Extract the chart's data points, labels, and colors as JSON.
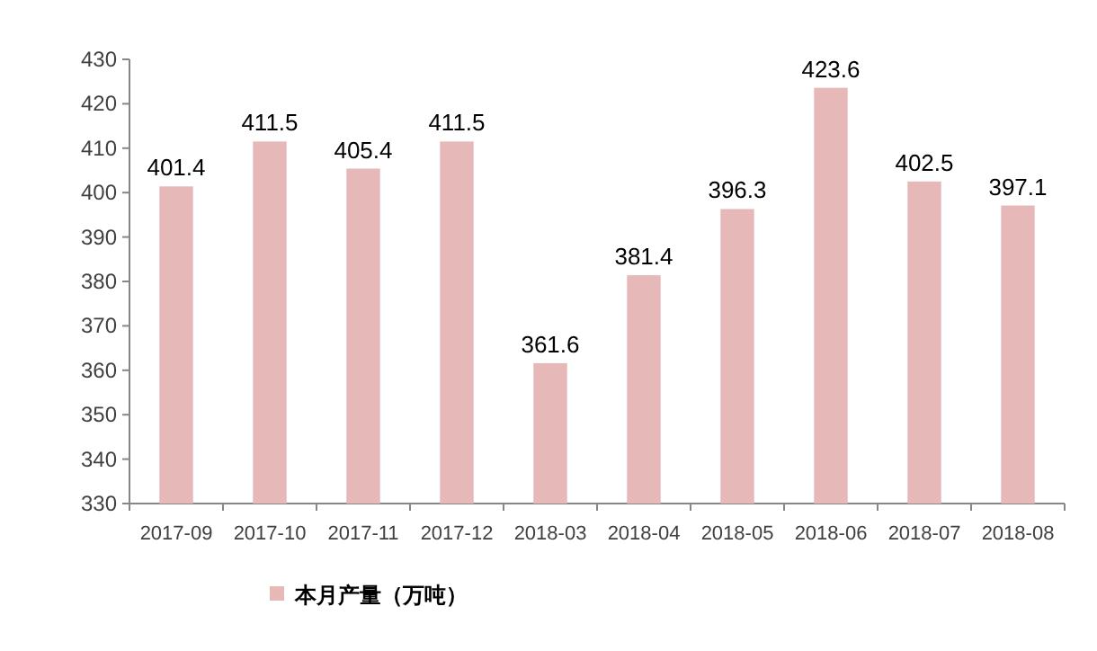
{
  "chart_data": {
    "type": "bar",
    "categories": [
      "2017-09",
      "2017-10",
      "2017-11",
      "2017-12",
      "2018-03",
      "2018-04",
      "2018-05",
      "2018-06",
      "2018-07",
      "2018-08"
    ],
    "series": [
      {
        "name": "本月产量（万吨）",
        "color": "#e6b9b8",
        "values": [
          401.4,
          411.5,
          405.4,
          411.5,
          361.6,
          381.4,
          396.3,
          423.6,
          402.5,
          397.1
        ]
      }
    ],
    "ylim": [
      330,
      430
    ],
    "yticks": [
      330,
      340,
      350,
      360,
      370,
      380,
      390,
      400,
      410,
      420,
      430
    ],
    "data_labels": true,
    "legend": "bottom",
    "grid": false
  }
}
